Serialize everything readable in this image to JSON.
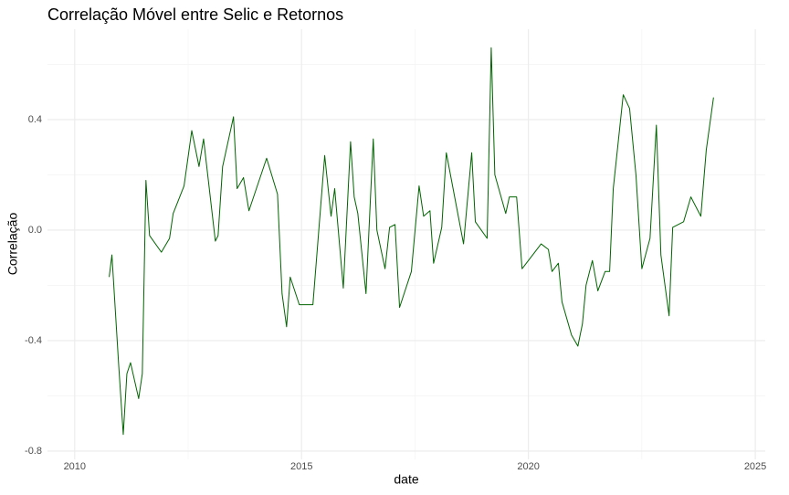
{
  "chart_data": {
    "type": "line",
    "title": "Correlação Móvel entre Selic e Retornos",
    "x_label": "date",
    "y_label": "Correlação",
    "grid": true,
    "xlim": [
      2009.4,
      2025.22
    ],
    "ylim": [
      -0.83,
      0.727
    ],
    "xticks": [
      2010,
      2015,
      2020,
      2025
    ],
    "yticks": [
      -0.8,
      -0.4,
      {
        "value": 0.0,
        "label": "0.0"
      },
      0.4
    ],
    "series": [
      {
        "color": "#006400",
        "x": [
          2010.76,
          2010.82,
          2010.97,
          2011.07,
          2011.15,
          2011.23,
          2011.41,
          2011.49,
          2011.57,
          2011.65,
          2011.91,
          2012.09,
          2012.17,
          2012.41,
          2012.58,
          2012.74,
          2012.84,
          2013.1,
          2013.16,
          2013.26,
          2013.5,
          2013.58,
          2013.72,
          2013.84,
          2014.23,
          2014.47,
          2014.57,
          2014.67,
          2014.75,
          2014.95,
          2015.25,
          2015.51,
          2015.65,
          2015.73,
          2015.92,
          2016.08,
          2016.16,
          2016.24,
          2016.42,
          2016.58,
          2016.66,
          2016.84,
          2016.94,
          2017.06,
          2017.16,
          2017.42,
          2017.59,
          2017.69,
          2017.83,
          2017.91,
          2018.09,
          2018.19,
          2018.57,
          2018.75,
          2018.83,
          2019.09,
          2019.18,
          2019.26,
          2019.5,
          2019.58,
          2019.74,
          2019.86,
          2020.28,
          2020.44,
          2020.52,
          2020.66,
          2020.74,
          2020.95,
          2021.09,
          2021.19,
          2021.27,
          2021.41,
          2021.53,
          2021.69,
          2021.79,
          2021.87,
          2022.09,
          2022.23,
          2022.37,
          2022.5,
          2022.68,
          2022.82,
          2022.92,
          2023.1,
          2023.18,
          2023.42,
          2023.58,
          2023.8,
          2023.92,
          2024.08
        ],
        "values": [
          -0.17,
          -0.09,
          -0.49,
          -0.74,
          -0.52,
          -0.48,
          -0.61,
          -0.52,
          0.18,
          -0.02,
          -0.08,
          -0.03,
          0.06,
          0.16,
          0.36,
          0.23,
          0.33,
          -0.04,
          -0.02,
          0.23,
          0.41,
          0.15,
          0.19,
          0.07,
          0.26,
          0.13,
          -0.23,
          -0.35,
          -0.17,
          -0.27,
          -0.27,
          0.27,
          0.05,
          0.15,
          -0.21,
          0.32,
          0.12,
          0.06,
          -0.23,
          0.33,
          0.0,
          -0.14,
          0.01,
          0.02,
          -0.28,
          -0.15,
          0.16,
          0.05,
          0.07,
          -0.12,
          0.01,
          0.28,
          -0.05,
          0.28,
          0.03,
          -0.03,
          0.66,
          0.2,
          0.06,
          0.12,
          0.12,
          -0.14,
          -0.05,
          -0.07,
          -0.15,
          -0.12,
          -0.26,
          -0.38,
          -0.42,
          -0.34,
          -0.2,
          -0.11,
          -0.22,
          -0.15,
          -0.15,
          0.15,
          0.49,
          0.44,
          0.2,
          -0.14,
          -0.03,
          0.38,
          -0.09,
          -0.31,
          0.01,
          0.03,
          0.12,
          0.05,
          0.29,
          0.48
        ]
      }
    ]
  }
}
